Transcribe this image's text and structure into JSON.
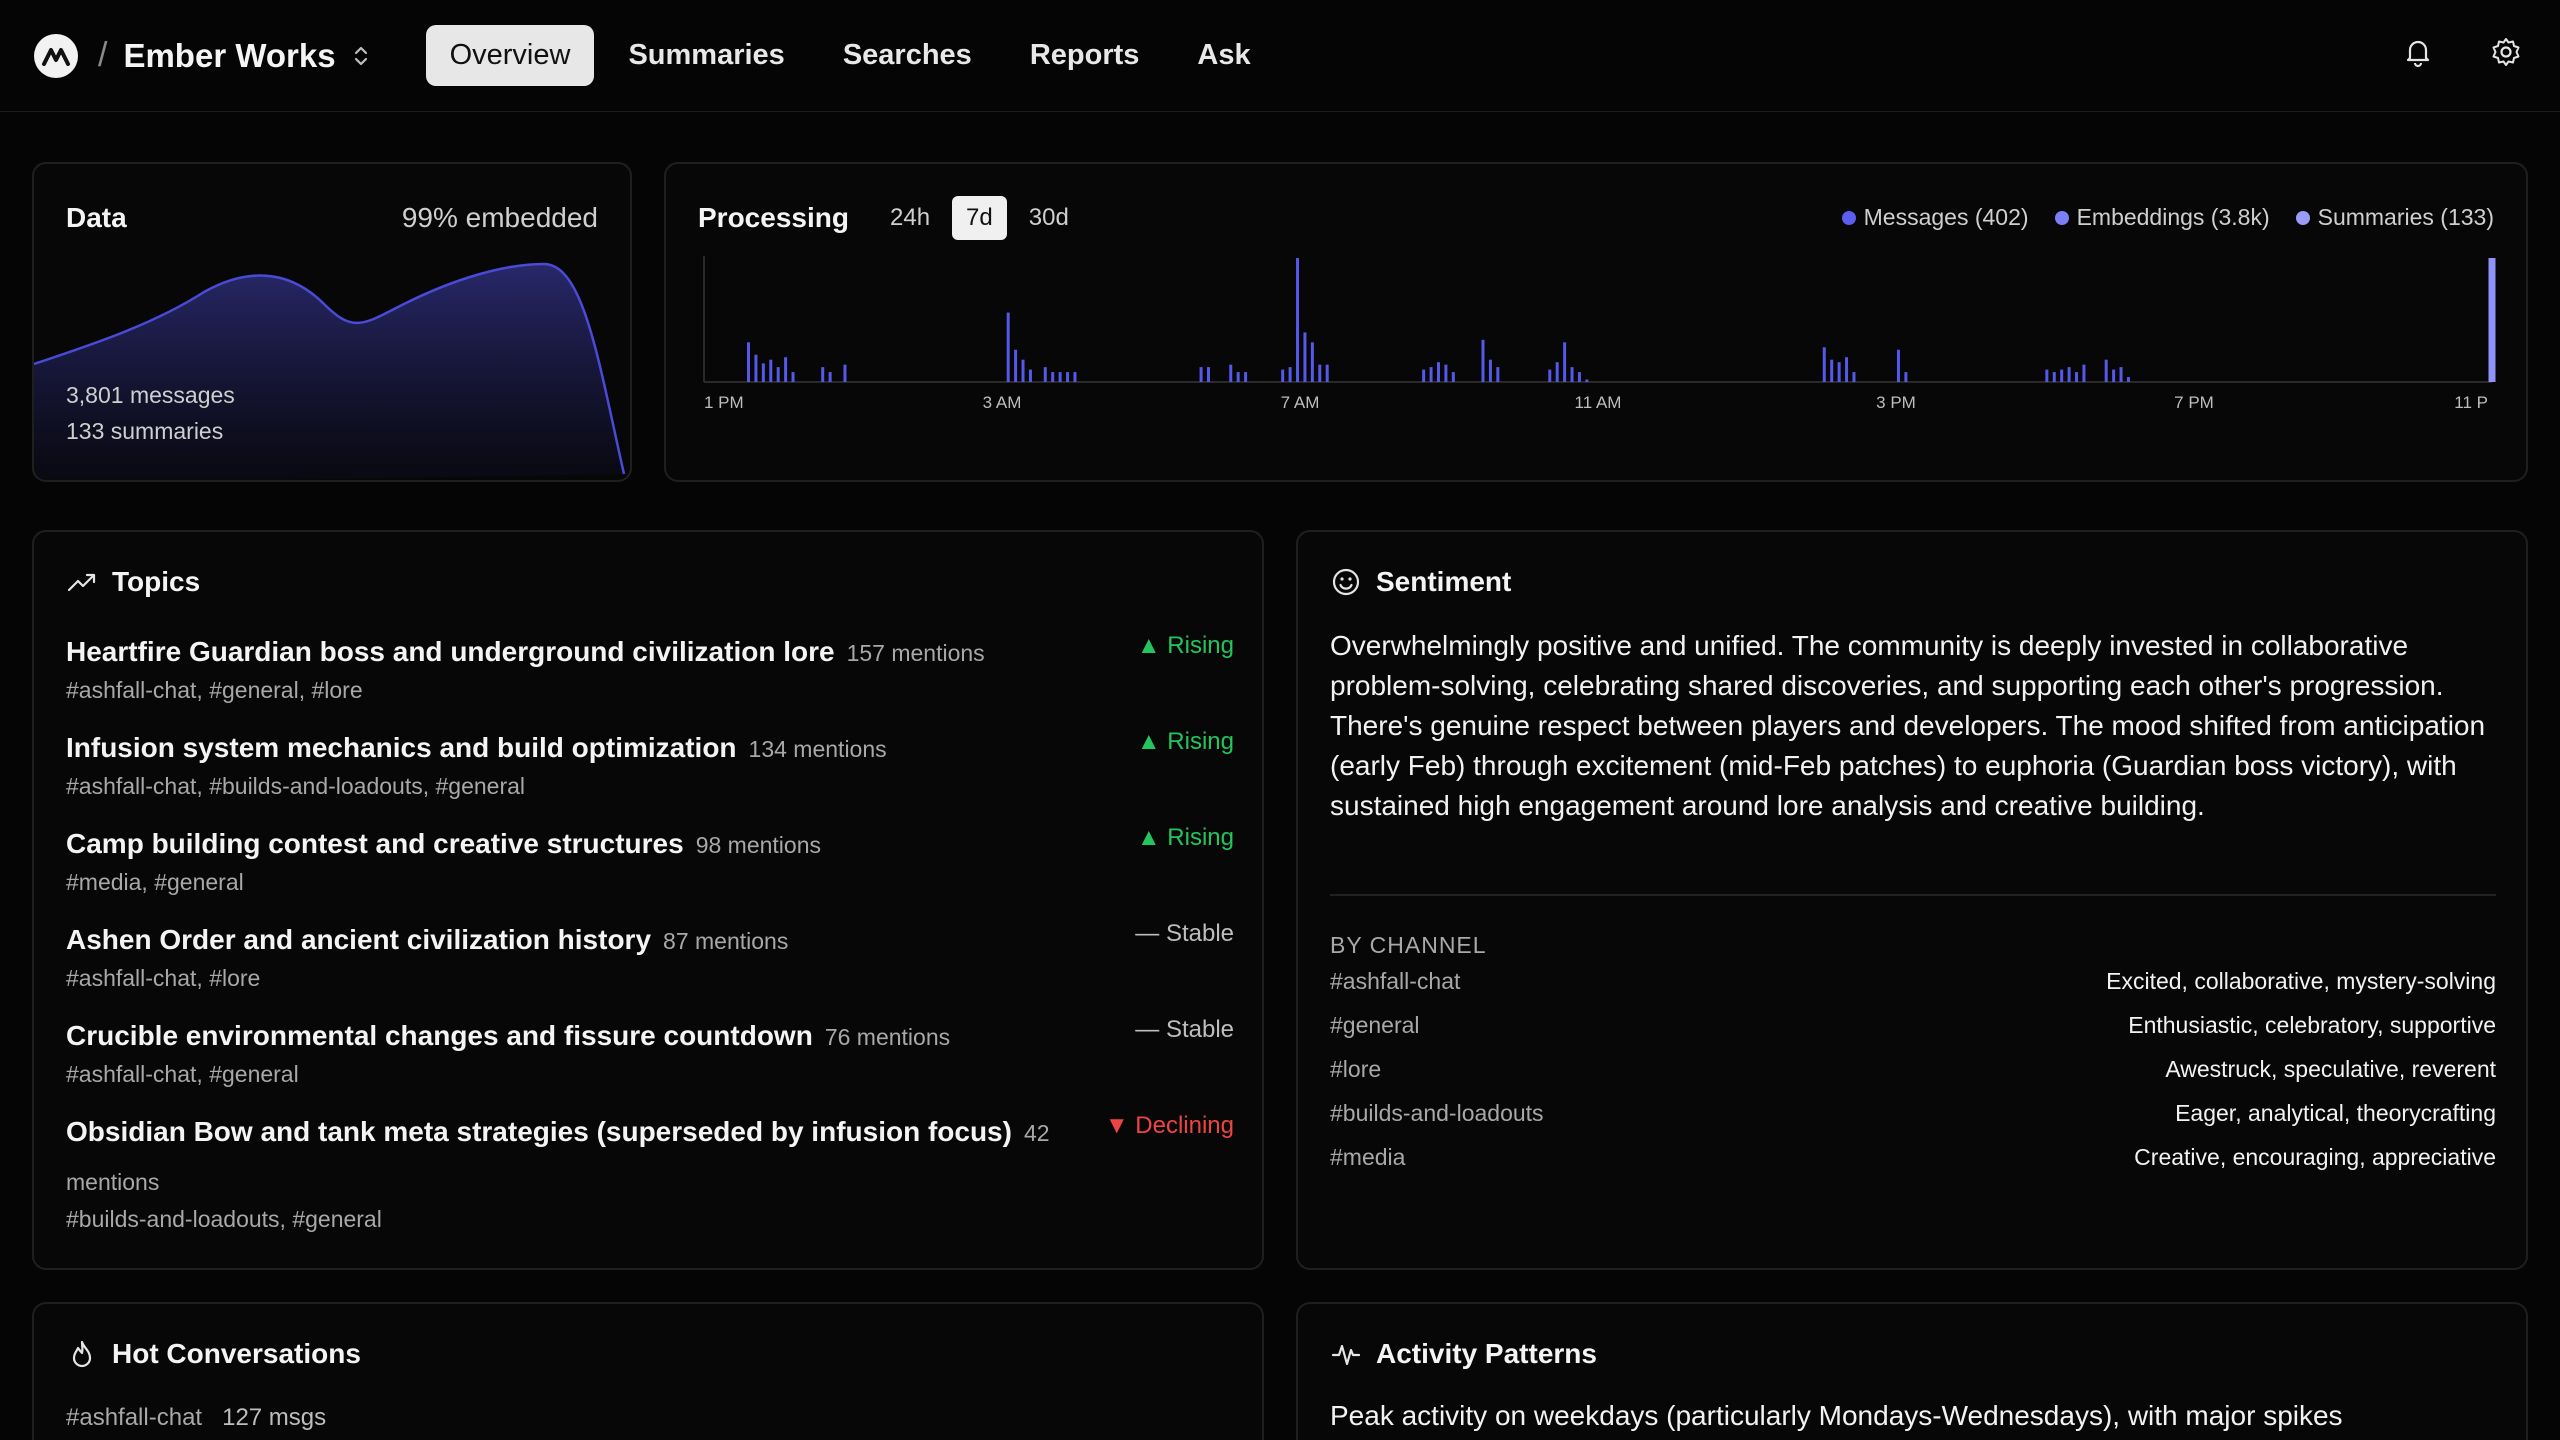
{
  "workspace": {
    "name": "Ember Works"
  },
  "nav": {
    "tabs": [
      "Overview",
      "Summaries",
      "Searches",
      "Reports",
      "Ask"
    ],
    "active": 0
  },
  "data_card": {
    "title": "Data",
    "embedded": "99% embedded",
    "messages": "3,801 messages",
    "summaries": "133 summaries"
  },
  "processing": {
    "title": "Processing",
    "ranges": [
      "24h",
      "7d",
      "30d"
    ],
    "active_range": 1,
    "legend": [
      {
        "label": "Messages (402)",
        "color": "#5b5ef0"
      },
      {
        "label": "Embeddings (3.8k)",
        "color": "#7b7ff5"
      },
      {
        "label": "Summaries (133)",
        "color": "#9a9cf8"
      }
    ]
  },
  "chart_data": {
    "type": "bar",
    "x_ticks": [
      "1 PM",
      "3 AM",
      "7 AM",
      "11 AM",
      "3 PM",
      "7 PM",
      "11 P"
    ],
    "values": [
      0,
      0,
      0,
      0,
      0,
      0,
      32,
      22,
      15,
      18,
      12,
      20,
      8,
      0,
      0,
      0,
      12,
      8,
      0,
      14,
      0,
      0,
      0,
      0,
      0,
      0,
      0,
      0,
      0,
      0,
      0,
      0,
      0,
      0,
      0,
      0,
      0,
      0,
      0,
      0,
      0,
      56,
      26,
      18,
      10,
      0,
      12,
      8,
      8,
      8,
      8,
      0,
      0,
      0,
      0,
      0,
      0,
      0,
      0,
      0,
      0,
      0,
      0,
      0,
      0,
      0,
      0,
      12,
      12,
      0,
      0,
      14,
      8,
      8,
      0,
      0,
      0,
      0,
      10,
      12,
      100,
      40,
      32,
      14,
      14,
      0,
      0,
      0,
      0,
      0,
      0,
      0,
      0,
      0,
      0,
      0,
      0,
      10,
      12,
      16,
      14,
      8,
      0,
      0,
      0,
      34,
      18,
      12,
      0,
      0,
      0,
      0,
      0,
      0,
      10,
      16,
      32,
      12,
      8,
      2,
      0,
      0,
      0,
      0,
      0,
      0,
      0,
      0,
      0,
      0,
      0,
      0,
      0,
      0,
      0,
      0,
      0,
      0,
      0,
      0,
      0,
      0,
      0,
      0,
      0,
      0,
      0,
      0,
      0,
      0,
      0,
      28,
      18,
      16,
      20,
      8,
      0,
      0,
      0,
      0,
      0,
      26,
      8,
      0,
      0,
      0,
      0,
      0,
      0,
      0,
      0,
      0,
      0,
      0,
      0,
      0,
      0,
      0,
      0,
      0,
      0,
      10,
      8,
      10,
      12,
      8,
      14,
      0,
      0,
      18,
      10,
      12,
      4,
      0,
      0,
      0,
      0,
      0,
      0,
      0,
      0,
      0,
      0,
      0,
      0,
      0,
      0,
      0,
      0,
      0,
      0,
      0,
      0,
      0,
      0,
      0,
      0,
      0,
      0,
      0,
      0,
      0,
      0,
      0,
      0,
      0,
      0,
      0,
      0,
      0,
      0,
      0,
      0,
      0,
      0,
      0,
      0,
      0,
      0,
      0,
      0,
      100
    ],
    "last_bar_series": "Summaries"
  },
  "topics": {
    "title": "Topics",
    "items": [
      {
        "name": "Heartfire Guardian boss and underground civilization lore",
        "mentions": "157 mentions",
        "channels": "#ashfall-chat, #general, #lore",
        "trend": "▲ Rising",
        "trend_type": "rising"
      },
      {
        "name": "Infusion system mechanics and build optimization",
        "mentions": "134 mentions",
        "channels": "#ashfall-chat, #builds-and-loadouts, #general",
        "trend": "▲ Rising",
        "trend_type": "rising"
      },
      {
        "name": "Camp building contest and creative structures",
        "mentions": "98 mentions",
        "channels": "#media, #general",
        "trend": "▲ Rising",
        "trend_type": "rising"
      },
      {
        "name": "Ashen Order and ancient civilization history",
        "mentions": "87 mentions",
        "channels": "#ashfall-chat, #lore",
        "trend": "— Stable",
        "trend_type": "stable"
      },
      {
        "name": "Crucible environmental changes and fissure countdown",
        "mentions": "76 mentions",
        "channels": "#ashfall-chat, #general",
        "trend": "— Stable",
        "trend_type": "stable"
      },
      {
        "name": "Obsidian Bow and tank meta strategies (superseded by infusion focus)",
        "mentions": "42 mentions",
        "channels": "#builds-and-loadouts, #general",
        "trend": "▼ Declining",
        "trend_type": "declining"
      }
    ]
  },
  "sentiment": {
    "title": "Sentiment",
    "summary": "Overwhelmingly positive and unified. The community is deeply invested in collaborative problem-solving, celebrating shared discoveries, and supporting each other's progression. There's genuine respect between players and developers. The mood shifted from anticipation (early Feb) through excitement (mid-Feb patches) to euphoria (Guardian boss victory), with sustained high engagement around lore analysis and creative building.",
    "by_channel_label": "BY CHANNEL",
    "channels": [
      {
        "name": "#ashfall-chat",
        "mood": "Excited, collaborative, mystery-solving"
      },
      {
        "name": "#general",
        "mood": "Enthusiastic, celebratory, supportive"
      },
      {
        "name": "#lore",
        "mood": "Awestruck, speculative, reverent"
      },
      {
        "name": "#builds-and-loadouts",
        "mood": "Eager, analytical, theorycrafting"
      },
      {
        "name": "#media",
        "mood": "Creative, encouraging, appreciative"
      }
    ]
  },
  "hot": {
    "title": "Hot Conversations",
    "first_channel": "#ashfall-chat",
    "first_count": "127 msgs"
  },
  "activity": {
    "title": "Activity Patterns",
    "text": "Peak activity on weekdays (particularly Mondays-Wednesdays), with major spikes"
  }
}
